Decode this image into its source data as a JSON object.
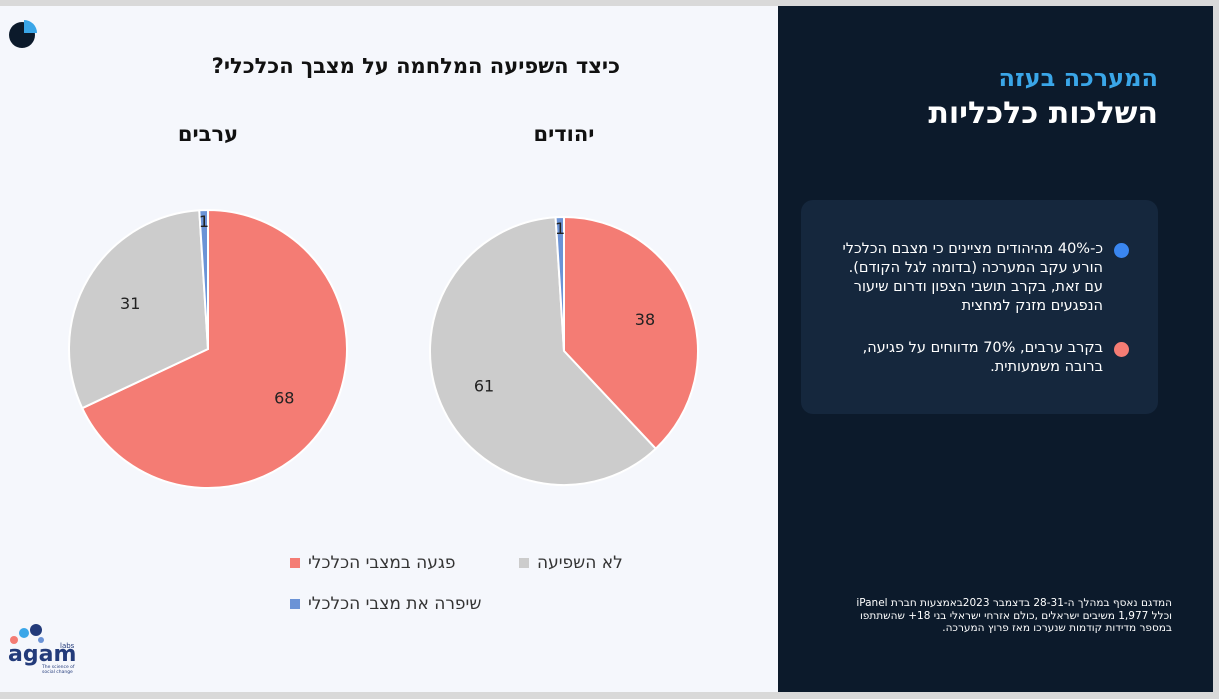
{
  "slide": {
    "title": "כיצד השפיעה המלחמה על מצבך הכלכלי?"
  },
  "chart_data": {
    "type": "pie",
    "categories": [
      "פגעה במצבי הכלכלי",
      "לא השפיעה",
      "שיפרה את מצבי הכלכלי"
    ],
    "colors": [
      "#f47c74",
      "#cccccc",
      "#6b93d6"
    ],
    "series": [
      {
        "name": "יהודים",
        "values": [
          38,
          61,
          1
        ]
      },
      {
        "name": "ערבים",
        "values": [
          68,
          31,
          1
        ]
      }
    ]
  },
  "panel": {
    "kicker": "המערכה בעזה",
    "headline": "השלכות כלכליות",
    "bullets": [
      "כ-40% מהיהודים מציינים כי מצבם הכלכלי הורע עקב המערכה (בדומה לגל הקודם). עם זאת, בקרב תושבי הצפון ודרום שיעור הנפגעים מזנק למחצית",
      "בקרב ערבים, 70% מדווחים על פגיעה, ברובה משמעותית."
    ],
    "note": "המדגם נאסף במהלך ה-28-31 בדצמבר 2023באמצעות חברת iPanel וכלל 1,977 משיבים ישראלים ,כולם אזרחי ישראלי בני 18+ שהשתתפו במספר מדידות קודמות שנערכו מאז פרוץ המערכה."
  },
  "logo": {
    "name": "agam",
    "suffix": "labs",
    "tagline": "The science of social change"
  }
}
